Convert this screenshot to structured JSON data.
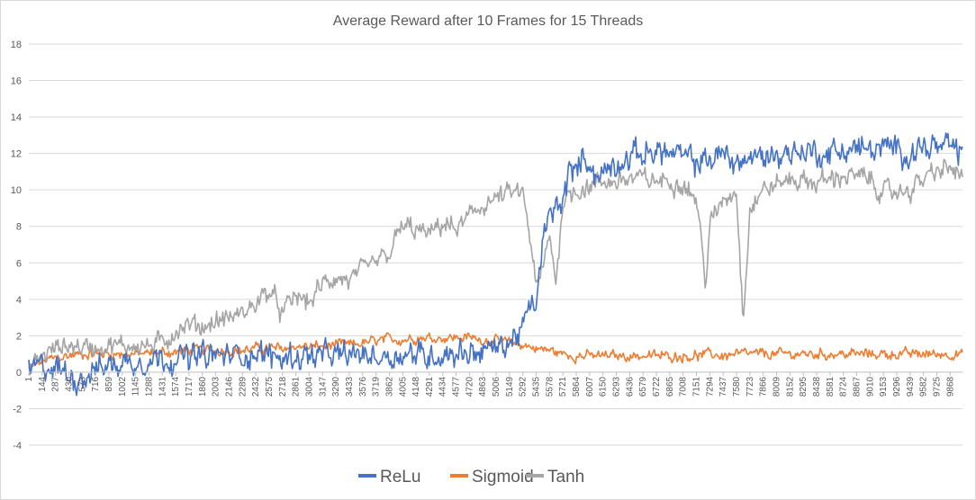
{
  "chart_data": {
    "type": "line",
    "title": "Average Reward after 10 Frames for 15 Threads",
    "xlabel": "",
    "ylabel": "",
    "ylim": [
      -4,
      18
    ],
    "yticks": [
      -4,
      -2,
      0,
      2,
      4,
      6,
      8,
      10,
      12,
      14,
      16,
      18
    ],
    "xlim": [
      1,
      10000
    ],
    "x_tick_labels": [
      "1",
      "144",
      "287",
      "430",
      "573",
      "716",
      "859",
      "1002",
      "1145",
      "1288",
      "1431",
      "1574",
      "1717",
      "1860",
      "2003",
      "2146",
      "2289",
      "2432",
      "2575",
      "2718",
      "2861",
      "3004",
      "3147",
      "3290",
      "3433",
      "3576",
      "3719",
      "3862",
      "4005",
      "4148",
      "4291",
      "4434",
      "4577",
      "4720",
      "4863",
      "5006",
      "5149",
      "5292",
      "5435",
      "5578",
      "5721",
      "5864",
      "6007",
      "6150",
      "6293",
      "6436",
      "6579",
      "6722",
      "6865",
      "7008",
      "7151",
      "7294",
      "7437",
      "7580",
      "7723",
      "7866",
      "8009",
      "8152",
      "8295",
      "8438",
      "8581",
      "8724",
      "8867",
      "9010",
      "9153",
      "9296",
      "9439",
      "9582",
      "9725",
      "9868"
    ],
    "grid": true,
    "legend_position": "bottom",
    "series": [
      {
        "name": "ReLu",
        "color": "#4472c4",
        "points": [
          [
            1,
            0.1
          ],
          [
            150,
            0.3
          ],
          [
            300,
            0.2
          ],
          [
            430,
            -0.2
          ],
          [
            573,
            -0.3
          ],
          [
            716,
            0.2
          ],
          [
            859,
            0.4
          ],
          [
            1002,
            0.5
          ],
          [
            1145,
            0.6
          ],
          [
            1288,
            0.7
          ],
          [
            1431,
            0.8
          ],
          [
            1574,
            0.8
          ],
          [
            1717,
            0.8
          ],
          [
            1860,
            0.9
          ],
          [
            2003,
            0.9
          ],
          [
            2146,
            0.9
          ],
          [
            2289,
            1.0
          ],
          [
            2432,
            1.0
          ],
          [
            2575,
            0.9
          ],
          [
            2718,
            0.8
          ],
          [
            2861,
            0.9
          ],
          [
            3004,
            0.9
          ],
          [
            3147,
            0.9
          ],
          [
            3290,
            0.9
          ],
          [
            3433,
            0.9
          ],
          [
            3576,
            1.0
          ],
          [
            3719,
            0.9
          ],
          [
            3862,
            0.9
          ],
          [
            4005,
            1.0
          ],
          [
            4148,
            1.0
          ],
          [
            4291,
            0.9
          ],
          [
            4434,
            1.0
          ],
          [
            4577,
            1.1
          ],
          [
            4720,
            1.1
          ],
          [
            4863,
            1.2
          ],
          [
            5006,
            1.3
          ],
          [
            5149,
            1.6
          ],
          [
            5292,
            2.5
          ],
          [
            5380,
            3.5
          ],
          [
            5435,
            3.8
          ],
          [
            5500,
            7.0
          ],
          [
            5578,
            8.5
          ],
          [
            5650,
            9.0
          ],
          [
            5721,
            9.5
          ],
          [
            5790,
            11.0
          ],
          [
            5864,
            11.0
          ],
          [
            5950,
            12.0
          ],
          [
            6007,
            11.5
          ],
          [
            6100,
            10.5
          ],
          [
            6150,
            11.0
          ],
          [
            6293,
            11.5
          ],
          [
            6436,
            11.8
          ],
          [
            6579,
            12.0
          ],
          [
            6722,
            12.2
          ],
          [
            6865,
            12.0
          ],
          [
            7008,
            11.8
          ],
          [
            7151,
            11.5
          ],
          [
            7294,
            11.7
          ],
          [
            7437,
            12.0
          ],
          [
            7580,
            11.5
          ],
          [
            7723,
            11.7
          ],
          [
            7866,
            11.8
          ],
          [
            8009,
            12.0
          ],
          [
            8152,
            12.0
          ],
          [
            8295,
            12.2
          ],
          [
            8438,
            12.0
          ],
          [
            8581,
            12.0
          ],
          [
            8724,
            12.2
          ],
          [
            8867,
            12.3
          ],
          [
            9010,
            12.2
          ],
          [
            9153,
            12.2
          ],
          [
            9296,
            12.3
          ],
          [
            9439,
            12.0
          ],
          [
            9582,
            12.4
          ],
          [
            9725,
            12.3
          ],
          [
            9868,
            12.3
          ],
          [
            10000,
            12.1
          ]
        ]
      },
      {
        "name": "Sigmoid",
        "color": "#ed7d31",
        "points": [
          [
            1,
            0.2
          ],
          [
            150,
            0.6
          ],
          [
            300,
            0.8
          ],
          [
            430,
            0.9
          ],
          [
            573,
            1.0
          ],
          [
            716,
            1.0
          ],
          [
            859,
            1.0
          ],
          [
            1002,
            1.0
          ],
          [
            1145,
            1.0
          ],
          [
            1288,
            1.0
          ],
          [
            1431,
            1.1
          ],
          [
            1574,
            1.1
          ],
          [
            1717,
            1.2
          ],
          [
            1860,
            1.2
          ],
          [
            2003,
            1.2
          ],
          [
            2146,
            1.2
          ],
          [
            2289,
            1.2
          ],
          [
            2432,
            1.3
          ],
          [
            2575,
            1.3
          ],
          [
            2718,
            1.3
          ],
          [
            2861,
            1.4
          ],
          [
            3004,
            1.4
          ],
          [
            3147,
            1.4
          ],
          [
            3290,
            1.5
          ],
          [
            3433,
            1.5
          ],
          [
            3576,
            1.6
          ],
          [
            3719,
            1.7
          ],
          [
            3862,
            1.8
          ],
          [
            4005,
            1.8
          ],
          [
            4148,
            1.9
          ],
          [
            4291,
            1.9
          ],
          [
            4434,
            1.9
          ],
          [
            4577,
            1.9
          ],
          [
            4720,
            1.9
          ],
          [
            4863,
            1.8
          ],
          [
            5006,
            1.7
          ],
          [
            5149,
            1.6
          ],
          [
            5292,
            1.5
          ],
          [
            5435,
            1.3
          ],
          [
            5578,
            1.2
          ],
          [
            5721,
            1.0
          ],
          [
            5864,
            0.9
          ],
          [
            6007,
            0.9
          ],
          [
            6150,
            0.9
          ],
          [
            6293,
            0.9
          ],
          [
            6436,
            0.9
          ],
          [
            6579,
            0.9
          ],
          [
            6722,
            0.9
          ],
          [
            6865,
            0.9
          ],
          [
            7008,
            0.9
          ],
          [
            7151,
            0.9
          ],
          [
            7294,
            1.0
          ],
          [
            7437,
            0.9
          ],
          [
            7580,
            1.0
          ],
          [
            7723,
            1.0
          ],
          [
            7866,
            1.0
          ],
          [
            8009,
            1.0
          ],
          [
            8152,
            1.0
          ],
          [
            8295,
            1.0
          ],
          [
            8438,
            1.0
          ],
          [
            8581,
            1.0
          ],
          [
            8724,
            1.0
          ],
          [
            8867,
            1.0
          ],
          [
            9010,
            1.0
          ],
          [
            9153,
            1.0
          ],
          [
            9296,
            1.0
          ],
          [
            9439,
            1.0
          ],
          [
            9582,
            1.0
          ],
          [
            9725,
            1.0
          ],
          [
            9868,
            1.0
          ],
          [
            10000,
            1.0
          ]
        ]
      },
      {
        "name": "Tanh",
        "color": "#a5a5a5",
        "points": [
          [
            1,
            0.2
          ],
          [
            150,
            0.9
          ],
          [
            287,
            1.3
          ],
          [
            430,
            1.5
          ],
          [
            573,
            1.4
          ],
          [
            716,
            1.4
          ],
          [
            859,
            1.5
          ],
          [
            1002,
            1.4
          ],
          [
            1145,
            1.6
          ],
          [
            1288,
            1.4
          ],
          [
            1431,
            1.6
          ],
          [
            1574,
            2.3
          ],
          [
            1717,
            2.6
          ],
          [
            1860,
            2.5
          ],
          [
            2003,
            2.8
          ],
          [
            2146,
            3.0
          ],
          [
            2289,
            3.2
          ],
          [
            2432,
            3.8
          ],
          [
            2575,
            4.5
          ],
          [
            2718,
            3.2
          ],
          [
            2861,
            4.2
          ],
          [
            3004,
            3.8
          ],
          [
            3147,
            4.8
          ],
          [
            3290,
            5.2
          ],
          [
            3433,
            5.0
          ],
          [
            3576,
            5.5
          ],
          [
            3719,
            6.0
          ],
          [
            3862,
            6.5
          ],
          [
            3950,
            7.5
          ],
          [
            4005,
            8.0
          ],
          [
            4148,
            7.8
          ],
          [
            4291,
            7.5
          ],
          [
            4434,
            8.2
          ],
          [
            4577,
            7.8
          ],
          [
            4720,
            8.5
          ],
          [
            4863,
            9.2
          ],
          [
            5006,
            9.5
          ],
          [
            5149,
            9.8
          ],
          [
            5292,
            9.8
          ],
          [
            5380,
            7.0
          ],
          [
            5435,
            4.5
          ],
          [
            5500,
            5.5
          ],
          [
            5578,
            7.5
          ],
          [
            5650,
            5.0
          ],
          [
            5721,
            9.5
          ],
          [
            5864,
            10.0
          ],
          [
            6007,
            10.2
          ],
          [
            6150,
            10.4
          ],
          [
            6293,
            10.5
          ],
          [
            6436,
            10.6
          ],
          [
            6579,
            10.6
          ],
          [
            6722,
            10.5
          ],
          [
            6865,
            10.5
          ],
          [
            7008,
            10.4
          ],
          [
            7151,
            9.5
          ],
          [
            7250,
            5.0
          ],
          [
            7294,
            8.0
          ],
          [
            7437,
            9.5
          ],
          [
            7580,
            10.0
          ],
          [
            7650,
            3.0
          ],
          [
            7723,
            9.0
          ],
          [
            7866,
            10.0
          ],
          [
            8009,
            10.3
          ],
          [
            8152,
            10.6
          ],
          [
            8295,
            10.5
          ],
          [
            8438,
            10.4
          ],
          [
            8581,
            10.6
          ],
          [
            8724,
            10.8
          ],
          [
            8867,
            10.7
          ],
          [
            9010,
            10.6
          ],
          [
            9153,
            9.8
          ],
          [
            9296,
            9.9
          ],
          [
            9439,
            10.0
          ],
          [
            9582,
            10.6
          ],
          [
            9725,
            11.0
          ],
          [
            9868,
            11.2
          ],
          [
            10000,
            10.7
          ]
        ]
      }
    ]
  }
}
